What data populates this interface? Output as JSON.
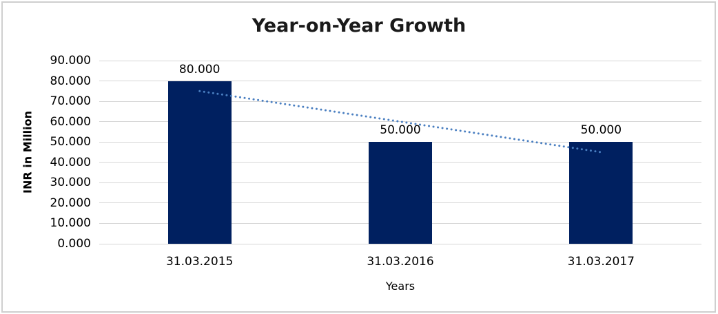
{
  "chart_data": {
    "type": "bar",
    "title": "Year-on-Year Growth",
    "xlabel": "Years",
    "ylabel": "INR in Million",
    "categories": [
      "31.03.2015",
      "31.03.2016",
      "31.03.2017"
    ],
    "values": [
      80,
      50,
      50
    ],
    "value_labels": [
      "80.000",
      "50.000",
      "50.000"
    ],
    "ytick_values": [
      0,
      10,
      20,
      30,
      40,
      50,
      60,
      70,
      80,
      90
    ],
    "ytick_labels": [
      "0.000",
      "10.000",
      "20.000",
      "30.000",
      "40.000",
      "50.000",
      "60.000",
      "70.000",
      "80.000",
      "90.000"
    ],
    "ylim": [
      0,
      90
    ],
    "grid": true,
    "legend": "none",
    "bar_color": "#002060",
    "gridline_color": "#D6D6D6",
    "text_color": "#000000",
    "border_color": "#CFCFCF",
    "trendline": {
      "type": "linear",
      "style": "dotted",
      "color": "#4A7FC1",
      "points": [
        {
          "x": "31.03.2015",
          "value": 75
        },
        {
          "x": "31.03.2017",
          "value": 45
        }
      ]
    }
  }
}
